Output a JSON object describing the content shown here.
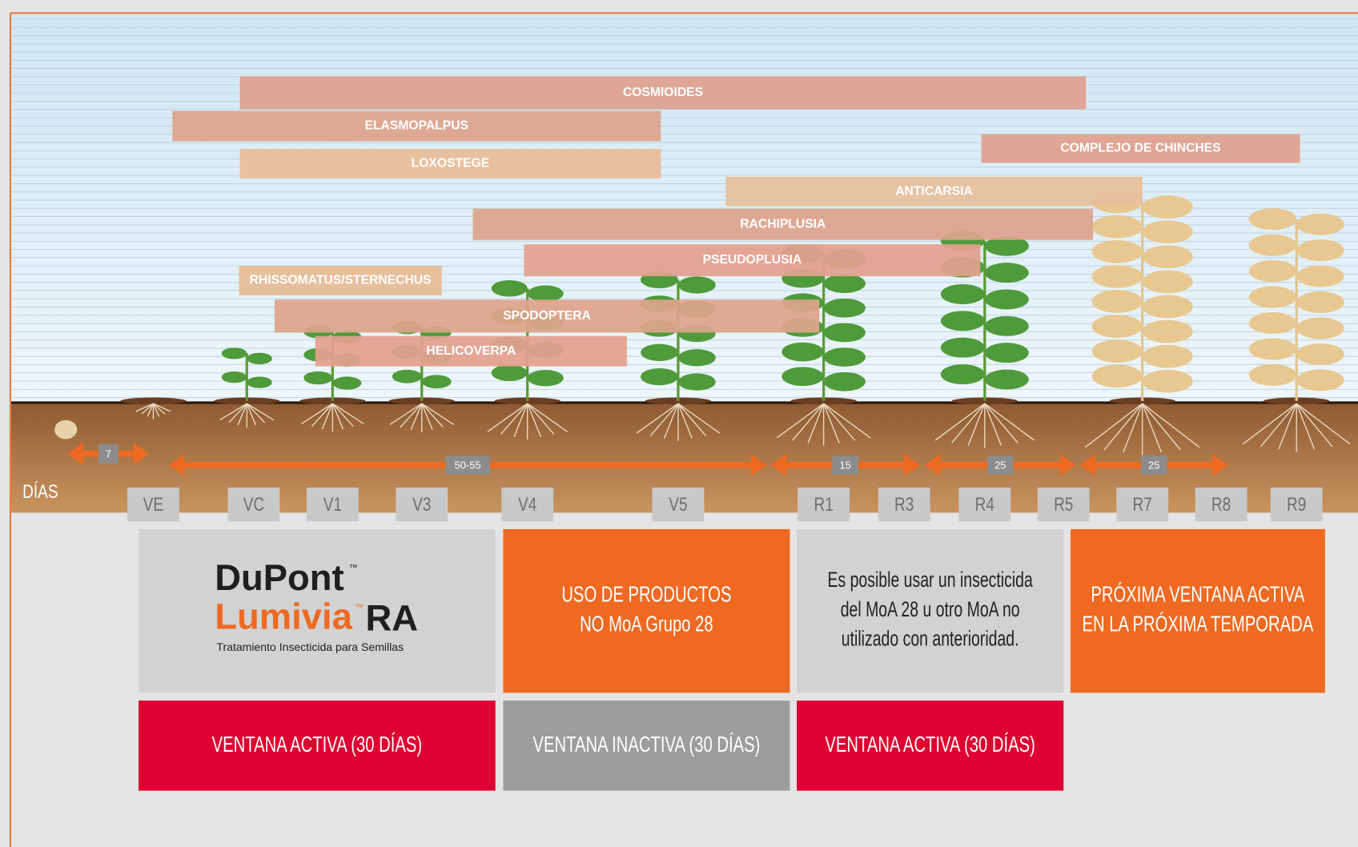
{
  "pests": [
    {
      "label": "COSMIOIDES"
    },
    {
      "label": "ELASMOPALPUS"
    },
    {
      "label": "LOXOSTEGE"
    },
    {
      "label": "COMPLEJO DE CHINCHES"
    },
    {
      "label": "ANTICARSIA"
    },
    {
      "label": "RACHIPLUSIA"
    },
    {
      "label": "PSEUDOPLUSIA"
    },
    {
      "label": "RHISSOMATUS/STERNECHUS"
    },
    {
      "label": "SPODOPTERA"
    },
    {
      "label": "HELICOVERPA"
    }
  ],
  "days_label": "DÍAS",
  "days": [
    "7",
    "50-55",
    "15",
    "25",
    "25"
  ],
  "stages": [
    "VE",
    "VC",
    "V1",
    "V3",
    "V4",
    "V5",
    "R1",
    "R3",
    "R4",
    "R5",
    "R7",
    "R8",
    "R9"
  ],
  "logo": {
    "brand": "DuPont",
    "brand_tm": "™",
    "product": "Lumivia",
    "product_tm": "™",
    "suffix": "RA",
    "tagline": "Tratamiento Insecticida para Semillas"
  },
  "boxes": [
    {
      "lines": [
        "USO DE PRODUCTOS",
        "NO MoA Grupo 28"
      ]
    },
    {
      "lines": [
        "Es posible usar un insecticida",
        "del MoA 28 u otro MoA no",
        "utilizado con anterioridad."
      ]
    },
    {
      "lines": [
        "PRÓXIMA VENTANA ACTIVA",
        "EN LA PRÓXIMA TEMPORADA"
      ]
    }
  ],
  "windows": [
    "VENTANA ACTIVA (30 DÍAS)",
    "VENTANA INACTIVA (30 DÍAS)",
    "VENTANA ACTIVA (30 DÍAS)"
  ]
}
